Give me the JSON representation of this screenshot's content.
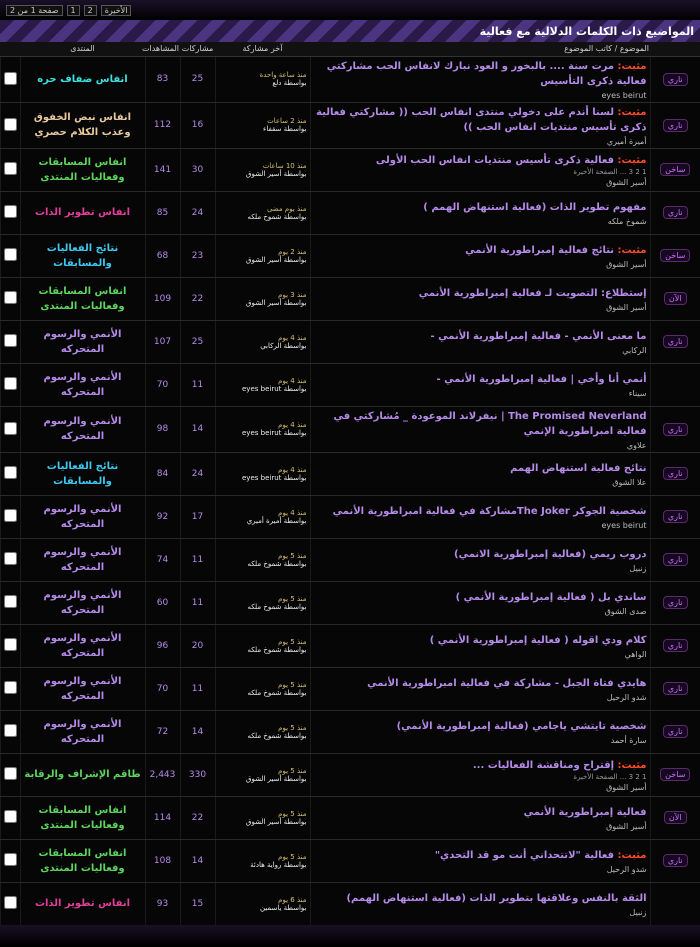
{
  "pagination": {
    "page_info": "صفحة 1 من 2",
    "pages": [
      "1",
      "2"
    ],
    "last": "الأخيرة"
  },
  "header": {
    "title": "المواضيع ذات الكلمات الدلالية مع فعالية"
  },
  "columns": {
    "topic": "الموضوع / كاتب الموضوع",
    "last_post": "آخر مشاركة",
    "replies": "مشاركات",
    "views": "المشاهدات",
    "forum": "المنتدى"
  },
  "rows": [
    {
      "status": "ناري",
      "prefix": "مثبت:",
      "title": "مرت سنة .... بالبخور و العود نبارك لانفاس الحب مشاركتي فعالية ذكرى التأسيس",
      "author": "eyes beirut",
      "time": "منذ ساعة واحدة",
      "by": "بواسطة دلع",
      "replies": "25",
      "views": "83",
      "forum": "انفاس ضفاف حره",
      "color": "#3ee0e0"
    },
    {
      "status": "ناري",
      "prefix": "مثبت:",
      "title": "لسنا أندم على دخولي منتدى انفاس الحب (( مشاركتي فعالية ذكرى تأسيس منتديات انفاس الحب ))",
      "author": "أميرة أميري",
      "time": "منذ 2 ساعات",
      "by": "بواسطة سقفاء",
      "replies": "16",
      "views": "112",
      "forum": "انفاس نبض الخفوق وعذب الكلام حصري",
      "color": "#e8c9a0"
    },
    {
      "status": "ساخن",
      "prefix": "مثبت:",
      "title": "فعالية ذكرى تأسيس منتديات انفاس الحب الأولى",
      "pages": "1 2 3 ... الصفحة الأخيرة",
      "author": "أسير الشوق",
      "time": "منذ 10 ساعات",
      "by": "بواسطة أسير الشوق",
      "replies": "30",
      "views": "141",
      "forum": "انفاس المسابقات وفعاليات المنتدى",
      "color": "#5fd35f"
    },
    {
      "status": "ناري",
      "title": "مفهوم تطوير الذات (فعالية استنهاض الهمم )",
      "author": "شموخ ملكه",
      "time": "منذ يوم مضى",
      "by": "بواسطة شموخ ملكه",
      "replies": "24",
      "views": "85",
      "forum": "انفاس تطوير الذات",
      "color": "#e0409a"
    },
    {
      "status": "ساخن",
      "prefix": "مثبت:",
      "title": "نتائج فعالية إمبراطورية الأنمي",
      "author": "أسير الشوق",
      "time": "منذ 2 يوم",
      "by": "بواسطة أسير الشوق",
      "replies": "23",
      "views": "68",
      "forum": "نتائج الفعاليات والمسابقات",
      "color": "#3ec8f0"
    },
    {
      "status": "الآن",
      "title": "إستطلاع: التصويت لـ فعالية إمبراطورية الأنمي",
      "author": "أسير الشوق",
      "time": "منذ 3 يوم",
      "by": "بواسطة أسير الشوق",
      "replies": "22",
      "views": "109",
      "forum": "انفاس المسابقات وفعاليات المنتدى",
      "color": "#5fd35f"
    },
    {
      "status": "ناري",
      "title": "ما معنى الأنمي - فعالية إمبراطورية الأنمي -",
      "author": "الركابي",
      "time": "منذ 4 يوم",
      "by": "بواسطة الركابي",
      "replies": "25",
      "views": "107",
      "forum": "الأنمي والرسوم المتحركه",
      "color": "#b58be8"
    },
    {
      "title": "أنمي أنا وأخي | فعالية إمبراطورية الأنمي -",
      "author": "سيناء",
      "time": "منذ 4 يوم",
      "by": "بواسطة eyes beirut",
      "replies": "11",
      "views": "70",
      "forum": "الأنمي والرسوم المتحركه",
      "color": "#b58be8"
    },
    {
      "status": "ناري",
      "title": "The Promised Neverland | نيفرلاند الموعودة _ مُشاركتي في فعالية امبراطورية الإنمي",
      "author": "علاوي",
      "time": "منذ 4 يوم",
      "by": "بواسطة eyes beirut",
      "replies": "14",
      "views": "98",
      "forum": "الأنمي والرسوم المتحركه",
      "color": "#b58be8"
    },
    {
      "status": "ناري",
      "title": "نتائج فعالية استنهاض الهمم",
      "author": "علا الشوق",
      "time": "منذ 4 يوم",
      "by": "بواسطة eyes beirut",
      "replies": "24",
      "views": "84",
      "forum": "نتائج الفعاليات والمسابقات",
      "color": "#3ec8f0"
    },
    {
      "status": "ناري",
      "title": "شخصية الجوكر The Jokerمشاركة في فعالية امبراطورية الأنمي",
      "author": "eyes beirut",
      "time": "منذ 4 يوم",
      "by": "بواسطة أميرة أميري",
      "replies": "17",
      "views": "92",
      "forum": "الأنمي والرسوم المتحركه",
      "color": "#b58be8"
    },
    {
      "status": "ناري",
      "title": "دروب ريمي (فعالية إمبراطورية الانمي)",
      "author": "زنبيل",
      "time": "منذ 5 يوم",
      "by": "بواسطة شموخ ملكه",
      "replies": "11",
      "views": "74",
      "forum": "الأنمي والرسوم المتحركه",
      "color": "#b58be8"
    },
    {
      "status": "ناري",
      "title": "ساندي بل ( فعالية إمبراطورية الأنمي )",
      "author": "صدى الشوق",
      "time": "منذ 5 يوم",
      "by": "بواسطة شموخ ملكه",
      "replies": "11",
      "views": "60",
      "forum": "الأنمي والرسوم المتحركه",
      "color": "#b58be8"
    },
    {
      "status": "ناري",
      "title": "كلام ودي اقوله ( فعالية إمبراطورية الأنمي )",
      "author": "الواهي",
      "time": "منذ 5 يوم",
      "by": "بواسطة شموخ ملكه",
      "replies": "20",
      "views": "96",
      "forum": "الأنمي والرسوم المتحركه",
      "color": "#b58be8"
    },
    {
      "status": "ناري",
      "title": "هايدي فتاة الجبل - مشاركة في فعالية امبراطورية الأنمي",
      "author": "شدو الرحيل",
      "time": "منذ 5 يوم",
      "by": "بواسطة شموخ ملكه",
      "replies": "11",
      "views": "70",
      "forum": "الأنمي والرسوم المتحركه",
      "color": "#b58be8"
    },
    {
      "status": "ناري",
      "title": "شخصية تايتشي ياجامي (فعالية إمبراطورية الأنمي)",
      "author": "سارة أحمد",
      "time": "منذ 5 يوم",
      "by": "بواسطة شموخ ملكه",
      "replies": "14",
      "views": "72",
      "forum": "الأنمي والرسوم المتحركه",
      "color": "#b58be8"
    },
    {
      "status": "ساخن",
      "prefix": "مثبت:",
      "title": "إقتراح ومناقشة الفعاليات ...",
      "pages": "1 2 3 ... الصفحة الأخيرة",
      "author": "أسير الشوق",
      "time": "منذ 5 يوم",
      "by": "بواسطة أسير الشوق",
      "replies": "330",
      "views": "2,443",
      "forum": "طاقم الإشراف والرقابة",
      "color": "#5fd35f"
    },
    {
      "status": "الآن",
      "title": "فعالية إمبراطورية الأنمي",
      "author": "أسير الشوق",
      "time": "منذ 5 يوم",
      "by": "بواسطة أسير الشوق",
      "replies": "22",
      "views": "114",
      "forum": "انفاس المسابقات وفعاليات المنتدى",
      "color": "#5fd35f"
    },
    {
      "status": "ناري",
      "prefix": "مثبت:",
      "title": "فعالية \"لاتتحداني أنت مو قد التحدي\"",
      "author": "شدو الرحيل",
      "time": "منذ 5 يوم",
      "by": "بواسطة رواية هادئة",
      "replies": "14",
      "views": "108",
      "forum": "انفاس المسابقات وفعاليات المنتدى",
      "color": "#5fd35f"
    },
    {
      "title": "الثقة بالنفس وعلاقتها بتطوير الذات (فعالية استنهاض الهمم)",
      "author": "زنبيل",
      "time": "منذ 6 يوم",
      "by": "بواسطة ياسمين",
      "replies": "15",
      "views": "93",
      "forum": "انفاس تطوير الذات",
      "color": "#e0409a"
    }
  ]
}
